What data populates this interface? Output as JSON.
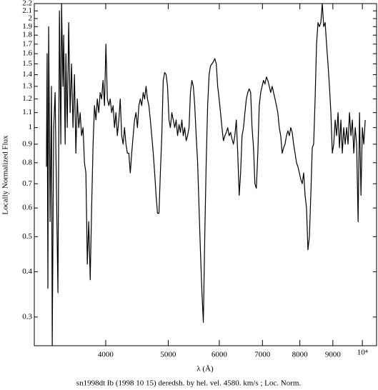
{
  "chart_data": {
    "type": "line",
    "caption": "sn1998dt Ib (1998 10 15) deredsh. by hel. vel.  4580. km/s ;  Loc. Norm.",
    "x_label": "λ (Å)",
    "y_label": "Locally Normalized Flux",
    "log_x": true,
    "log_y": true,
    "color": "#000000",
    "xlim": [
      3100,
      10520
    ],
    "ylim": [
      0.25,
      2.2
    ],
    "xticks": [
      4000,
      5000,
      6000,
      7000,
      8000,
      9000,
      {
        "value": 10000,
        "label": "10⁴"
      }
    ],
    "yticks": [
      0.3,
      0.4,
      0.5,
      0.6,
      0.7,
      0.8,
      0.9,
      1,
      1.1,
      1.2,
      1.3,
      1.4,
      1.5,
      1.6,
      1.7,
      1.8,
      1.9,
      2,
      2.1,
      2.2
    ],
    "x": [
      3237,
      3245,
      3254,
      3263,
      3280,
      3296,
      3305,
      3322,
      3339,
      3356,
      3373,
      3391,
      3408,
      3417,
      3434,
      3443,
      3461,
      3470,
      3487,
      3505,
      3523,
      3541,
      3559,
      3578,
      3596,
      3614,
      3633,
      3651,
      3670,
      3689,
      3708,
      3727,
      3746,
      3765,
      3785,
      3804,
      3824,
      3843,
      3863,
      3882,
      3902,
      3922,
      3942,
      3962,
      3983,
      4003,
      4024,
      4045,
      4065,
      4086,
      4107,
      4128,
      4149,
      4170,
      4192,
      4213,
      4235,
      4257,
      4278,
      4300,
      4322,
      4344,
      4367,
      4389,
      4412,
      4434,
      4457,
      4480,
      4503,
      4526,
      4549,
      4573,
      4596,
      4620,
      4643,
      4667,
      4691,
      4715,
      4740,
      4764,
      4788,
      4813,
      4838,
      4862,
      4887,
      4912,
      4937,
      4963,
      4988,
      5014,
      5039,
      5065,
      5091,
      5118,
      5144,
      5170,
      5197,
      5223,
      5250,
      5276,
      5303,
      5331,
      5358,
      5386,
      5413,
      5441,
      5469,
      5497,
      5525,
      5554,
      5582,
      5611,
      5640,
      5668,
      5697,
      5726,
      5756,
      5786,
      5815,
      5845,
      5875,
      5905,
      5936,
      5966,
      5997,
      6027,
      6058,
      6089,
      6121,
      6152,
      6183,
      6215,
      6247,
      6279,
      6311,
      6343,
      6376,
      6409,
      6442,
      6475,
      6508,
      6542,
      6575,
      6609,
      6642,
      6676,
      6711,
      6745,
      6780,
      6814,
      6849,
      6885,
      6920,
      6956,
      6991,
      7027,
      7063,
      7100,
      7136,
      7173,
      7209,
      7246,
      7283,
      7321,
      7358,
      7395,
      7433,
      7472,
      7510,
      7549,
      7587,
      7626,
      7666,
      7705,
      7745,
      7784,
      7824,
      7864,
      7905,
      7945,
      7985,
      8026,
      8068,
      8109,
      8151,
      8192,
      8234,
      8277,
      8319,
      8362,
      8404,
      8448,
      8491,
      8535,
      8578,
      8622,
      8667,
      8711,
      8756,
      8800,
      8845,
      8891,
      8937,
      8983,
      9028,
      9074,
      9121,
      9168,
      9215,
      9262,
      9309,
      9357,
      9405,
      9454,
      9502,
      9550,
      9600,
      9649,
      9699,
      9748,
      9798,
      9849,
      9899,
      9950,
      10000,
      10051,
      10103
    ],
    "values": [
      0.78,
      1.6,
      0.36,
      1.9,
      0.55,
      1.3,
      0.25,
      1.0,
      1.25,
      0.65,
      0.35,
      2.1,
      0.9,
      2.2,
      1.3,
      1.8,
      0.9,
      1.6,
      1.0,
      1.95,
      1.1,
      1.5,
      1.0,
      1.4,
      0.85,
      1.2,
      1.0,
      1.1,
      0.95,
      1.0,
      0.8,
      0.75,
      0.42,
      0.55,
      0.38,
      0.6,
      0.9,
      1.15,
      1.05,
      1.2,
      1.1,
      1.25,
      1.2,
      1.35,
      1.15,
      1.7,
      1.2,
      1.15,
      1.2,
      1.1,
      1.15,
      1.0,
      1.1,
      0.95,
      1.05,
      1.2,
      0.95,
      0.9,
      1.0,
      0.9,
      0.85,
      0.85,
      0.75,
      0.85,
      0.95,
      1.05,
      1.1,
      1.0,
      1.15,
      1.2,
      1.15,
      1.25,
      1.2,
      1.3,
      1.2,
      1.15,
      1.05,
      0.95,
      0.85,
      0.75,
      0.65,
      0.58,
      0.58,
      0.75,
      0.95,
      1.35,
      1.42,
      1.4,
      1.3,
      1.05,
      1.0,
      1.1,
      1.05,
      1.0,
      1.05,
      0.95,
      1.02,
      0.97,
      1.05,
      0.95,
      1.0,
      0.92,
      0.95,
      1.0,
      1.25,
      1.35,
      1.3,
      1.15,
      0.95,
      0.8,
      0.6,
      0.45,
      0.35,
      0.29,
      0.5,
      0.8,
      1.15,
      1.4,
      1.48,
      1.5,
      1.52,
      1.55,
      1.5,
      1.3,
      1.2,
      1.1,
      1.0,
      0.92,
      0.95,
      0.97,
      1.0,
      0.95,
      0.97,
      0.93,
      0.9,
      0.95,
      1.05,
      0.85,
      0.65,
      0.75,
      0.95,
      1.0,
      1.1,
      1.2,
      1.25,
      1.28,
      1.25,
      1.0,
      0.88,
      0.7,
      0.68,
      0.85,
      1.15,
      1.25,
      1.3,
      1.35,
      1.32,
      1.38,
      1.35,
      1.3,
      1.25,
      1.3,
      1.25,
      1.2,
      1.15,
      1.1,
      1.0,
      0.95,
      0.85,
      0.88,
      0.9,
      0.95,
      0.98,
      0.95,
      1.0,
      0.97,
      0.9,
      0.85,
      0.8,
      0.78,
      0.75,
      0.72,
      0.7,
      0.75,
      0.65,
      0.6,
      0.46,
      0.5,
      0.65,
      0.88,
      0.9,
      1.2,
      1.7,
      1.95,
      1.9,
      1.95,
      2.2,
      1.9,
      1.95,
      1.7,
      1.5,
      1.3,
      1.1,
      0.85,
      0.9,
      1.05,
      0.95,
      1.1,
      0.88,
      1.05,
      0.85,
      1.0,
      0.9,
      1.0,
      0.9,
      1.1,
      0.95,
      1.05,
      0.85,
      1.0,
      0.9,
      0.55,
      1.1,
      0.65,
      1.0,
      0.9,
      1.05
    ]
  }
}
